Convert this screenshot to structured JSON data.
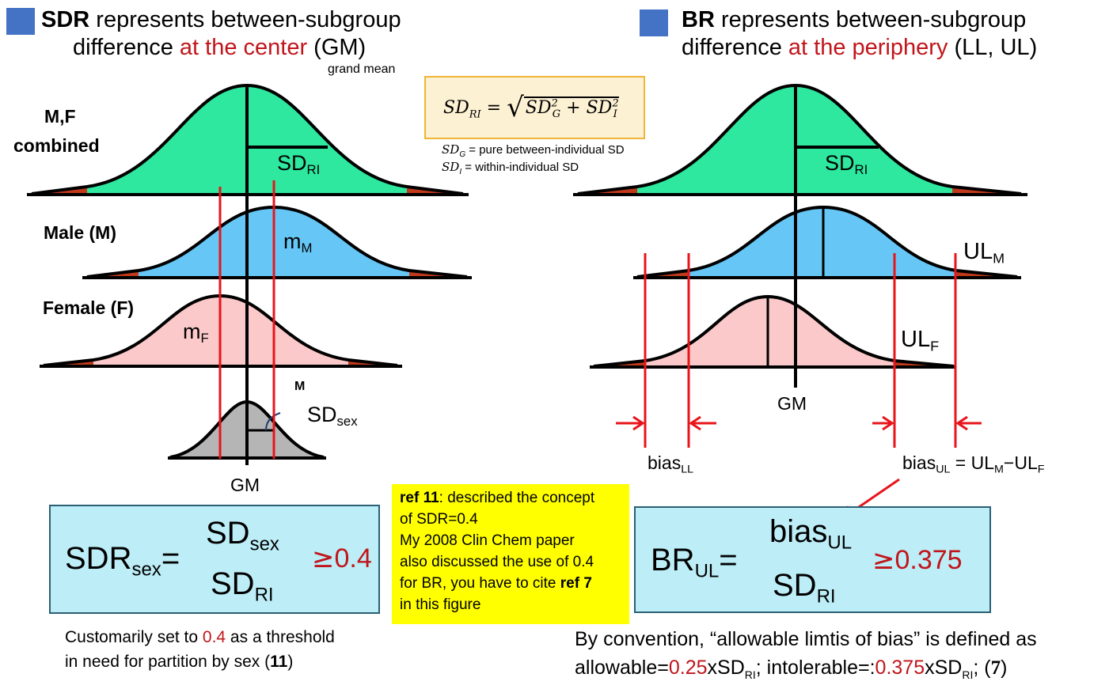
{
  "left_panel": {
    "title_bold": "SDR",
    "title_line1_rest": " represents between-subgroup",
    "title_line2_pre": "difference ",
    "title_line2_red": "at the center",
    "title_line2_post": " (GM)",
    "grand_mean_note": "grand mean",
    "label_combined_1": "M,F",
    "label_combined_2": "combined",
    "label_male": "Male (M)",
    "label_female": "Female (F)",
    "sd_ri": "SD",
    "sd_ri_sub": "RI",
    "m_male": "m",
    "m_male_sub": "M",
    "m_female": "m",
    "m_female_sub": "F",
    "m_small": "M",
    "sd_sex": "SD",
    "sd_sex_sub": "sex",
    "gm": "GM"
  },
  "right_panel": {
    "title_bold": "BR",
    "title_line1_rest": " represents between-subgroup",
    "title_line2_pre": "difference ",
    "title_line2_red": "at the periphery",
    "title_line2_post": " (LL, UL)",
    "sd_ri": "SD",
    "sd_ri_sub": "RI",
    "ul_m": "UL",
    "ul_m_sub": "M",
    "ul_f": "UL",
    "ul_f_sub": "F",
    "gm": "GM",
    "bias_ll": "bias",
    "bias_ll_sub": "LL",
    "bias_ul": "bias",
    "bias_ul_sub": "UL",
    "bias_ul_eq": " = UL",
    "bias_ul_eq_sub1": "M",
    "bias_ul_minus": "−UL",
    "bias_ul_eq_sub2": "F"
  },
  "center_formula": {
    "lhs": "SD",
    "lhs_sub": "RI",
    "equals": "=",
    "term1": "SD",
    "term1_sub": "G",
    "term1_sup": "2",
    "plus": "+",
    "term2": "SD",
    "term2_sub": "I",
    "term2_sup": "2",
    "def_g_sym": "SD",
    "def_g_sub": "G",
    "def_g_text": " = pure between-individual SD",
    "def_i_sym": "SD",
    "def_i_sub": "I",
    "def_i_text": " = within-individual SD"
  },
  "sdr_formula": {
    "lhs": "SDR",
    "lhs_sub": "sex",
    "equals": "=",
    "num": "SD",
    "num_sub": "sex",
    "den": "SD",
    "den_sub": "RI",
    "threshold_sym": "≥",
    "threshold_val": "0.4"
  },
  "br_formula": {
    "lhs": "BR",
    "lhs_sub": "UL",
    "equals": "=",
    "num": "bias",
    "num_sub": "UL",
    "den": "SD",
    "den_sub": "RI",
    "threshold_sym": "≥",
    "threshold_val": "0.375"
  },
  "reviewer_note": {
    "ref11": "ref 11",
    "line1_rest": ": described the concept",
    "line2": "of SDR=0.4",
    "line3": "My 2008 Clin Chem paper",
    "line4": "also discussed the use of 0.4",
    "line5_pre": "for BR, you have to cite ",
    "ref7": "ref 7",
    "line6": "in this figure"
  },
  "left_caption": {
    "line1_pre": "Customarily set to ",
    "line1_red": "0.4",
    "line1_post": " as a threshold",
    "line2_pre": "in need for partition by sex (",
    "line2_bold": "11",
    "line2_post": ")"
  },
  "right_caption": {
    "line1": "By convention, “allowable limtis of bias” is defined as",
    "line2_pre": "allowable=",
    "line2_red1": "0.25",
    "line2_mid1": "xSD",
    "line2_sub1": "RI",
    "line2_mid2": "; intolerable=:",
    "line2_red2": "0.375",
    "line2_mid3": "xSD",
    "line2_sub2": "RI",
    "line2_mid4": "; (",
    "line2_bold": "7",
    "line2_post": ")"
  },
  "colors": {
    "combined_fill": "#2ee8a0",
    "male_fill": "#66c7f7",
    "female_fill": "#fbc9c9",
    "sex_fill": "#b5b5b5",
    "tail_fill": "#c0391b",
    "marker_red": "#e8141b",
    "title_square": "#4472c4",
    "highlight_red": "#c0161b"
  }
}
